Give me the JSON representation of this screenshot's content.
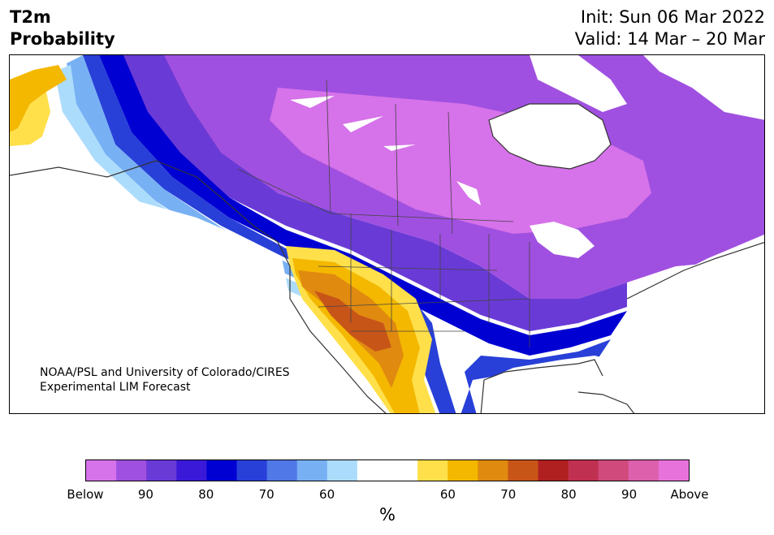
{
  "header": {
    "title_line1": "T2m",
    "title_line2": "Probability",
    "init_text": "Init: Sun 06 Mar 2022",
    "valid_text": "Valid: 14 Mar – 20 Mar"
  },
  "map": {
    "credit_line1": "NOAA/PSL and University of Colorado/CIRES",
    "credit_line2": "Experimental LIM Forecast"
  },
  "colorbar": {
    "colors_below": [
      "#d672ea",
      "#a050e0",
      "#6a3ad6",
      "#3a1ad8",
      "#0000d2",
      "#2840d8",
      "#5078e6",
      "#78b0f4",
      "#acdcfc"
    ],
    "color_neutral": "#ffffff",
    "colors_above": [
      "#ffe04a",
      "#f4b800",
      "#e08a10",
      "#c85518",
      "#b02020",
      "#c03050",
      "#d04a7c",
      "#dc60ac",
      "#e872dc"
    ],
    "tick_labels": [
      "Below",
      "90",
      "80",
      "70",
      "60",
      "60",
      "70",
      "80",
      "90",
      "Above"
    ],
    "unit_label": "%"
  }
}
